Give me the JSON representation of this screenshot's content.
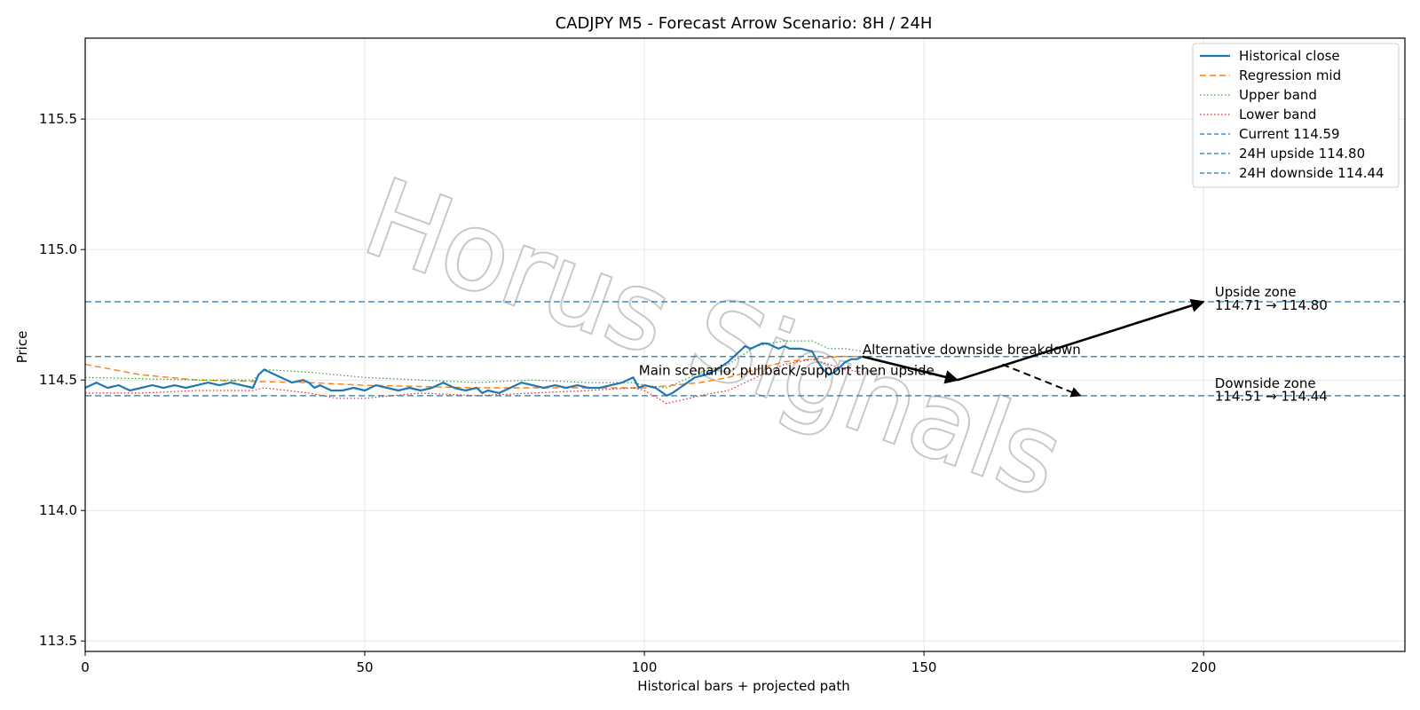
{
  "chart_data": {
    "type": "line",
    "title": "CADJPY M5 - Forecast Arrow Scenario: 8H / 24H",
    "xlabel": "Historical bars + projected path",
    "ylabel": "Price",
    "xlim": [
      0,
      236
    ],
    "ylim": [
      113.46,
      115.81
    ],
    "xticks": [
      0,
      50,
      100,
      150,
      200
    ],
    "xtick_labels": [
      "0",
      "50",
      "100",
      "150",
      "200"
    ],
    "yticks": [
      113.5,
      114.0,
      114.5,
      115.0,
      115.5
    ],
    "ytick_labels": [
      "113.5",
      "114.0",
      "114.5",
      "115.0",
      "115.5"
    ],
    "grid": true,
    "legend_position": "top-right",
    "colors": {
      "historical": "#1f77b4",
      "regression": "#ff7f0e",
      "upper": "#2ca02c",
      "lower": "#d62728",
      "levels": "#1f77b4",
      "arrows": "#000000",
      "watermark": "#c8c8c8"
    },
    "watermark_text": "Horus Signals",
    "series": [
      {
        "name": "Historical close",
        "style": "solid",
        "x": [
          0,
          2,
          4,
          6,
          8,
          10,
          12,
          14,
          16,
          18,
          20,
          22,
          24,
          26,
          28,
          30,
          31,
          32,
          33,
          35,
          37,
          39,
          40,
          41,
          42,
          44,
          46,
          48,
          50,
          52,
          54,
          56,
          58,
          60,
          62,
          64,
          66,
          68,
          70,
          71,
          72,
          74,
          76,
          78,
          80,
          82,
          84,
          86,
          88,
          90,
          92,
          94,
          96,
          98,
          99,
          100,
          102,
          104,
          105,
          107,
          109,
          111,
          113,
          115,
          117,
          118,
          119,
          120,
          121,
          122,
          123,
          124,
          125,
          126,
          128,
          130,
          131,
          132,
          133,
          134,
          135,
          136,
          137,
          138,
          139
        ],
        "values": [
          114.47,
          114.49,
          114.47,
          114.48,
          114.46,
          114.47,
          114.48,
          114.47,
          114.48,
          114.47,
          114.48,
          114.49,
          114.48,
          114.49,
          114.48,
          114.47,
          114.52,
          114.54,
          114.53,
          114.51,
          114.49,
          114.5,
          114.49,
          114.47,
          114.48,
          114.46,
          114.46,
          114.47,
          114.46,
          114.48,
          114.47,
          114.46,
          114.47,
          114.46,
          114.47,
          114.49,
          114.47,
          114.46,
          114.47,
          114.45,
          114.46,
          114.45,
          114.47,
          114.49,
          114.48,
          114.47,
          114.48,
          114.47,
          114.48,
          114.47,
          114.47,
          114.48,
          114.49,
          114.51,
          114.47,
          114.48,
          114.47,
          114.44,
          114.45,
          114.48,
          114.51,
          114.52,
          114.54,
          114.57,
          114.61,
          114.63,
          114.62,
          114.63,
          114.64,
          114.64,
          114.63,
          114.62,
          114.63,
          114.62,
          114.62,
          114.61,
          114.57,
          114.54,
          114.52,
          114.53,
          114.55,
          114.57,
          114.58,
          114.58,
          114.59
        ]
      },
      {
        "name": "Regression mid",
        "style": "dashed",
        "x": [
          0,
          10,
          20,
          30,
          40,
          50,
          60,
          70,
          80,
          90,
          100,
          105,
          110,
          115,
          120,
          125,
          130,
          135,
          139
        ],
        "values": [
          114.56,
          114.52,
          114.5,
          114.495,
          114.49,
          114.48,
          114.475,
          114.47,
          114.47,
          114.47,
          114.47,
          114.48,
          114.49,
          114.51,
          114.54,
          114.57,
          114.58,
          114.59,
          114.59
        ]
      },
      {
        "name": "Upper band",
        "style": "dotted",
        "x": [
          0,
          10,
          20,
          30,
          32,
          40,
          50,
          60,
          70,
          80,
          90,
          98,
          100,
          104,
          110,
          115,
          120,
          125,
          130,
          133,
          136,
          139
        ],
        "values": [
          114.51,
          114.505,
          114.5,
          114.5,
          114.54,
          114.53,
          114.51,
          114.5,
          114.49,
          114.5,
          114.49,
          114.49,
          114.48,
          114.47,
          114.53,
          114.56,
          114.63,
          114.65,
          114.65,
          114.62,
          114.62,
          114.61
        ]
      },
      {
        "name": "Lower band",
        "style": "dotted",
        "x": [
          0,
          10,
          20,
          30,
          32,
          40,
          45,
          50,
          60,
          70,
          80,
          90,
          98,
          100,
          104,
          110,
          115,
          120,
          125,
          130,
          133,
          136,
          139
        ],
        "values": [
          114.45,
          114.45,
          114.46,
          114.46,
          114.47,
          114.45,
          114.43,
          114.43,
          114.45,
          114.44,
          114.45,
          114.46,
          114.47,
          114.46,
          114.41,
          114.44,
          114.46,
          114.51,
          114.56,
          114.58,
          114.56,
          114.54,
          114.53
        ]
      }
    ],
    "levels": [
      {
        "name": "Current 114.59",
        "value": 114.59
      },
      {
        "name": "24H upside 114.80",
        "value": 114.8
      },
      {
        "name": "24H downside 114.44",
        "value": 114.44
      }
    ],
    "arrows": [
      {
        "style": "solid",
        "from": [
          139,
          114.59
        ],
        "to": [
          156,
          114.5
        ]
      },
      {
        "style": "solid",
        "from": [
          156,
          114.5
        ],
        "to": [
          200,
          114.8
        ]
      },
      {
        "style": "dashed",
        "from": [
          164,
          114.56
        ],
        "to": [
          178,
          114.44
        ]
      }
    ],
    "annotations": [
      {
        "key": "main",
        "text": "Main scenario: pullback/support then upside",
        "x": 99,
        "y": 114.52
      },
      {
        "key": "alt",
        "text": "Alternative downside breakdown",
        "x": 139,
        "y": 114.6
      },
      {
        "key": "up1",
        "text": "Upside zone",
        "x": 202,
        "y": 114.82
      },
      {
        "key": "up2",
        "text": "114.71 → 114.80",
        "x": 202,
        "y": 114.77
      },
      {
        "key": "dn1",
        "text": "Downside zone",
        "x": 202,
        "y": 114.47
      },
      {
        "key": "dn2",
        "text": "114.51 → 114.44",
        "x": 202,
        "y": 114.42
      }
    ]
  }
}
